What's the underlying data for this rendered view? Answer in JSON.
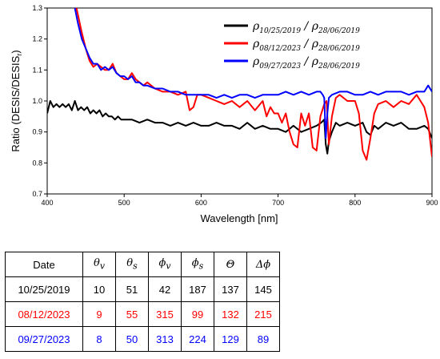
{
  "chart_data": {
    "type": "line",
    "xlabel": "Wavelength [nm]",
    "ylabel": "Ratio (DESIS/DESIS",
    "ylabel_sub": "r",
    "ylabel_close": ")",
    "xlim": [
      400,
      900
    ],
    "ylim": [
      0.7,
      1.3
    ],
    "x_ticks": [
      400,
      500,
      600,
      700,
      800,
      900
    ],
    "y_ticks": [
      0.7,
      0.8,
      0.9,
      1.0,
      1.1,
      1.2,
      1.3
    ],
    "x_tick_labels": [
      "400",
      "500",
      "600",
      "700",
      "800",
      "900"
    ],
    "y_tick_labels": [
      "0.7",
      "0.8",
      "0.9",
      "1.0",
      "1.1",
      "1.2",
      "1.3"
    ],
    "legend_position": "top-right",
    "grid": false,
    "series": [
      {
        "legend_main": "ρ",
        "legend_sub": "10/25/2019",
        "legend_sep": " / ρ",
        "legend_sub2": "28/06/2019",
        "color": "#000000",
        "x": [
          400,
          404,
          408,
          412,
          416,
          420,
          424,
          428,
          432,
          436,
          440,
          444,
          448,
          452,
          456,
          460,
          464,
          468,
          472,
          476,
          480,
          484,
          488,
          492,
          496,
          500,
          510,
          520,
          530,
          540,
          550,
          560,
          570,
          580,
          590,
          600,
          610,
          620,
          630,
          640,
          650,
          660,
          670,
          680,
          690,
          700,
          710,
          720,
          730,
          740,
          750,
          756,
          760,
          762,
          764,
          766,
          770,
          775,
          780,
          790,
          800,
          810,
          815,
          820,
          825,
          830,
          840,
          850,
          860,
          870,
          880,
          890,
          895,
          900
        ],
        "y": [
          0.96,
          1.0,
          0.98,
          0.99,
          0.98,
          0.99,
          0.98,
          0.99,
          0.97,
          1.0,
          0.97,
          0.98,
          0.97,
          0.98,
          0.96,
          0.97,
          0.96,
          0.97,
          0.95,
          0.96,
          0.95,
          0.95,
          0.94,
          0.95,
          0.94,
          0.94,
          0.94,
          0.93,
          0.94,
          0.93,
          0.93,
          0.92,
          0.93,
          0.92,
          0.93,
          0.92,
          0.92,
          0.93,
          0.92,
          0.92,
          0.91,
          0.93,
          0.91,
          0.92,
          0.91,
          0.91,
          0.9,
          0.92,
          0.9,
          0.91,
          0.92,
          0.93,
          0.94,
          0.86,
          0.83,
          0.87,
          0.9,
          0.93,
          0.92,
          0.93,
          0.92,
          0.93,
          0.9,
          0.89,
          0.92,
          0.91,
          0.93,
          0.92,
          0.93,
          0.91,
          0.91,
          0.92,
          0.91,
          0.88
        ]
      },
      {
        "legend_main": "ρ",
        "legend_sub": "08/12/2023",
        "legend_sep": " / ρ",
        "legend_sub2": "28/06/2019",
        "color": "#ff0000",
        "x": [
          438,
          445,
          450,
          455,
          460,
          465,
          470,
          475,
          480,
          485,
          490,
          495,
          500,
          505,
          510,
          515,
          520,
          525,
          530,
          540,
          550,
          560,
          570,
          580,
          585,
          590,
          595,
          600,
          610,
          620,
          630,
          640,
          650,
          660,
          670,
          680,
          685,
          690,
          695,
          700,
          705,
          710,
          715,
          720,
          725,
          730,
          735,
          740,
          745,
          750,
          755,
          760,
          763,
          766,
          770,
          775,
          780,
          790,
          800,
          805,
          810,
          815,
          820,
          825,
          830,
          840,
          850,
          860,
          870,
          880,
          885,
          890,
          895,
          900
        ],
        "y": [
          1.3,
          1.22,
          1.17,
          1.13,
          1.11,
          1.12,
          1.11,
          1.1,
          1.1,
          1.12,
          1.09,
          1.08,
          1.07,
          1.07,
          1.09,
          1.07,
          1.06,
          1.05,
          1.06,
          1.04,
          1.03,
          1.03,
          1.02,
          1.03,
          0.97,
          0.98,
          1.02,
          1.02,
          1.01,
          1.0,
          0.99,
          1.0,
          0.98,
          1.0,
          0.97,
          1.0,
          0.95,
          0.98,
          0.96,
          0.96,
          0.93,
          0.96,
          0.9,
          0.86,
          0.85,
          0.96,
          0.92,
          0.96,
          0.85,
          0.84,
          0.95,
          0.99,
          1.0,
          0.86,
          0.95,
          1.01,
          1.02,
          1.0,
          1.0,
          0.96,
          0.84,
          0.81,
          0.88,
          0.96,
          0.99,
          1.0,
          0.98,
          1.0,
          0.99,
          1.02,
          1.0,
          0.98,
          0.93,
          0.82
        ]
      },
      {
        "legend_main": "ρ",
        "legend_sub": "09/27/2023",
        "legend_sep": " / ρ",
        "legend_sub2": "28/06/2019",
        "color": "#0000ff",
        "x": [
          436,
          440,
          445,
          450,
          455,
          460,
          465,
          470,
          475,
          480,
          485,
          490,
          495,
          500,
          505,
          510,
          515,
          520,
          525,
          530,
          540,
          550,
          560,
          570,
          580,
          590,
          600,
          610,
          620,
          630,
          640,
          650,
          660,
          670,
          680,
          690,
          700,
          710,
          720,
          730,
          740,
          750,
          755,
          758,
          760,
          762,
          764,
          766,
          770,
          780,
          790,
          800,
          810,
          820,
          830,
          840,
          850,
          860,
          870,
          880,
          890,
          895,
          900
        ],
        "y": [
          1.3,
          1.25,
          1.2,
          1.17,
          1.14,
          1.12,
          1.12,
          1.1,
          1.11,
          1.1,
          1.11,
          1.09,
          1.08,
          1.08,
          1.07,
          1.08,
          1.06,
          1.06,
          1.05,
          1.05,
          1.04,
          1.04,
          1.03,
          1.03,
          1.02,
          1.02,
          1.02,
          1.02,
          1.01,
          1.02,
          1.01,
          1.02,
          1.02,
          1.01,
          1.02,
          1.02,
          1.02,
          1.03,
          1.02,
          1.03,
          1.02,
          1.03,
          1.03,
          1.02,
          1.01,
          0.88,
          0.96,
          1.01,
          1.02,
          1.03,
          1.03,
          1.02,
          1.02,
          1.03,
          1.02,
          1.03,
          1.03,
          1.03,
          1.02,
          1.03,
          1.03,
          1.05,
          1.03
        ]
      }
    ]
  },
  "table": {
    "headers": {
      "date": "Date",
      "theta_v_main": "θ",
      "theta_v_sub": "v",
      "theta_s_main": "θ",
      "theta_s_sub": "s",
      "phi_v_main": "ϕ",
      "phi_v_sub": "v",
      "phi_s_main": "ϕ",
      "phi_s_sub": "s",
      "big_theta": "Θ",
      "delta_phi": "Δϕ"
    },
    "rows": [
      {
        "date": "10/25/2019",
        "theta_v": "10",
        "theta_s": "51",
        "phi_v": "42",
        "phi_s": "187",
        "big_theta": "137",
        "delta_phi": "145",
        "color": "#000000"
      },
      {
        "date": "08/12/2023",
        "theta_v": "9",
        "theta_s": "55",
        "phi_v": "315",
        "phi_s": "99",
        "big_theta": "132",
        "delta_phi": "215",
        "color": "#ff0000"
      },
      {
        "date": "09/27/2023",
        "theta_v": "8",
        "theta_s": "50",
        "phi_v": "313",
        "phi_s": "224",
        "big_theta": "129",
        "delta_phi": "89",
        "color": "#0000ff"
      }
    ]
  }
}
